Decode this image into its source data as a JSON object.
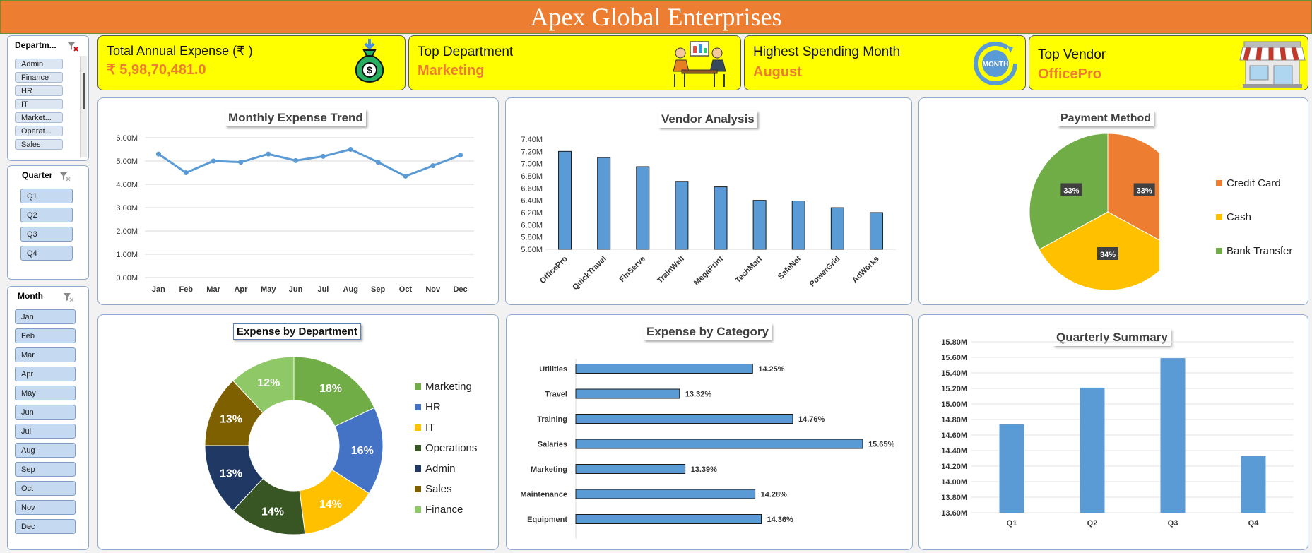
{
  "header": {
    "title": "Apex Global Enterprises"
  },
  "slicers": {
    "department": {
      "title": "Departm...",
      "items": [
        "Admin",
        "Finance",
        "HR",
        "IT",
        "Market...",
        "Operat...",
        "Sales"
      ]
    },
    "quarter": {
      "title": "Quarter",
      "items": [
        "Q1",
        "Q2",
        "Q3",
        "Q4"
      ]
    },
    "month": {
      "title": "Month",
      "items": [
        "Jan",
        "Feb",
        "Mar",
        "Apr",
        "May",
        "Jun",
        "Jul",
        "Aug",
        "Sep",
        "Oct",
        "Nov",
        "Dec"
      ]
    }
  },
  "kpis": {
    "total": {
      "label": "Total Annual Expense (₹ )",
      "value": "₹ 5,98,70,481.0",
      "icon": "money-bag-icon"
    },
    "department": {
      "label": "Top Department",
      "value": "Marketing",
      "icon": "meeting-people-icon"
    },
    "month": {
      "label": "Highest Spending Month",
      "value": "August",
      "icon": "calendar-month-icon"
    },
    "vendor": {
      "label": "Top Vendor",
      "value": "OfficePro",
      "icon": "storefront-icon"
    }
  },
  "colors": {
    "accent": "#ed7d31",
    "bar_blue": "#5b9bd5",
    "kpi_yellow": "#ffff00",
    "marketing": "#70ad47",
    "hr": "#4472c4",
    "it": "#ffc000",
    "operations": "#375623",
    "admin": "#1f3864",
    "sales": "#7f6000",
    "finance": "#8fc866"
  },
  "chart_data": [
    {
      "id": "monthly",
      "type": "line",
      "title": "Monthly Expense Trend",
      "categories": [
        "Jan",
        "Feb",
        "Mar",
        "Apr",
        "May",
        "Jun",
        "Jul",
        "Aug",
        "Sep",
        "Oct",
        "Nov",
        "Dec"
      ],
      "values": [
        5.3,
        4.5,
        5.0,
        4.95,
        5.3,
        5.02,
        5.2,
        5.5,
        4.95,
        4.35,
        4.8,
        5.25
      ],
      "ylim": [
        0,
        6
      ],
      "yticks": [
        "0.00M",
        "1.00M",
        "2.00M",
        "3.00M",
        "4.00M",
        "5.00M",
        "6.00M"
      ],
      "grid": true
    },
    {
      "id": "vendor",
      "type": "bar",
      "title": "Vendor Analysis",
      "categories": [
        "OfficePro",
        "QuickTravel",
        "FinServe",
        "TrainWell",
        "MegaPrint",
        "TechMart",
        "SafeNet",
        "PowerGrid",
        "AdWorks"
      ],
      "values": [
        7.2,
        7.1,
        6.95,
        6.71,
        6.62,
        6.4,
        6.39,
        6.28,
        6.2
      ],
      "ylim": [
        5.6,
        7.4
      ],
      "yticks": [
        "5.60M",
        "5.80M",
        "6.00M",
        "6.20M",
        "6.40M",
        "6.60M",
        "6.80M",
        "7.00M",
        "7.20M",
        "7.40M"
      ],
      "grid": false
    },
    {
      "id": "payment",
      "type": "pie",
      "title": "Payment Method",
      "labels": [
        "Credit Card",
        "Cash",
        "Bank Transfer"
      ],
      "values": [
        33,
        34,
        33
      ],
      "data_labels": [
        "33%",
        "34%",
        "33%"
      ],
      "colors": [
        "#ed7d31",
        "#ffc000",
        "#70ad47"
      ],
      "legend": "right"
    },
    {
      "id": "department",
      "type": "pie",
      "title": "Expense by Department",
      "labels": [
        "Marketing",
        "HR",
        "IT",
        "Operations",
        "Admin",
        "Sales",
        "Finance"
      ],
      "values": [
        18,
        16,
        14,
        14,
        13,
        13,
        12
      ],
      "data_labels": [
        "18%",
        "16%",
        "14%",
        "14%",
        "13%",
        "13%",
        "12%"
      ],
      "colors": [
        "#70ad47",
        "#4472c4",
        "#ffc000",
        "#375623",
        "#1f3864",
        "#7f6000",
        "#8fc866"
      ],
      "donut": true,
      "legend": "right"
    },
    {
      "id": "category",
      "type": "bar",
      "orientation": "horizontal",
      "title": "Expense by Category",
      "categories": [
        "Utilities",
        "Travel",
        "Training",
        "Salaries",
        "Marketing",
        "Maintenance",
        "Equipment"
      ],
      "values": [
        14.25,
        13.32,
        14.76,
        15.65,
        13.39,
        14.28,
        14.36
      ],
      "data_labels": [
        "14.25%",
        "13.32%",
        "14.76%",
        "15.65%",
        "13.39%",
        "14.28%",
        "14.36%"
      ]
    },
    {
      "id": "quarterly",
      "type": "bar",
      "title": "Quarterly Summary",
      "categories": [
        "Q1",
        "Q2",
        "Q3",
        "Q4"
      ],
      "values": [
        14.74,
        15.21,
        15.59,
        14.33
      ],
      "ylim": [
        13.6,
        15.8
      ],
      "yticks": [
        "13.60M",
        "13.80M",
        "14.00M",
        "14.20M",
        "14.40M",
        "14.60M",
        "14.80M",
        "15.00M",
        "15.20M",
        "15.40M",
        "15.60M",
        "15.80M"
      ],
      "grid": true
    }
  ]
}
